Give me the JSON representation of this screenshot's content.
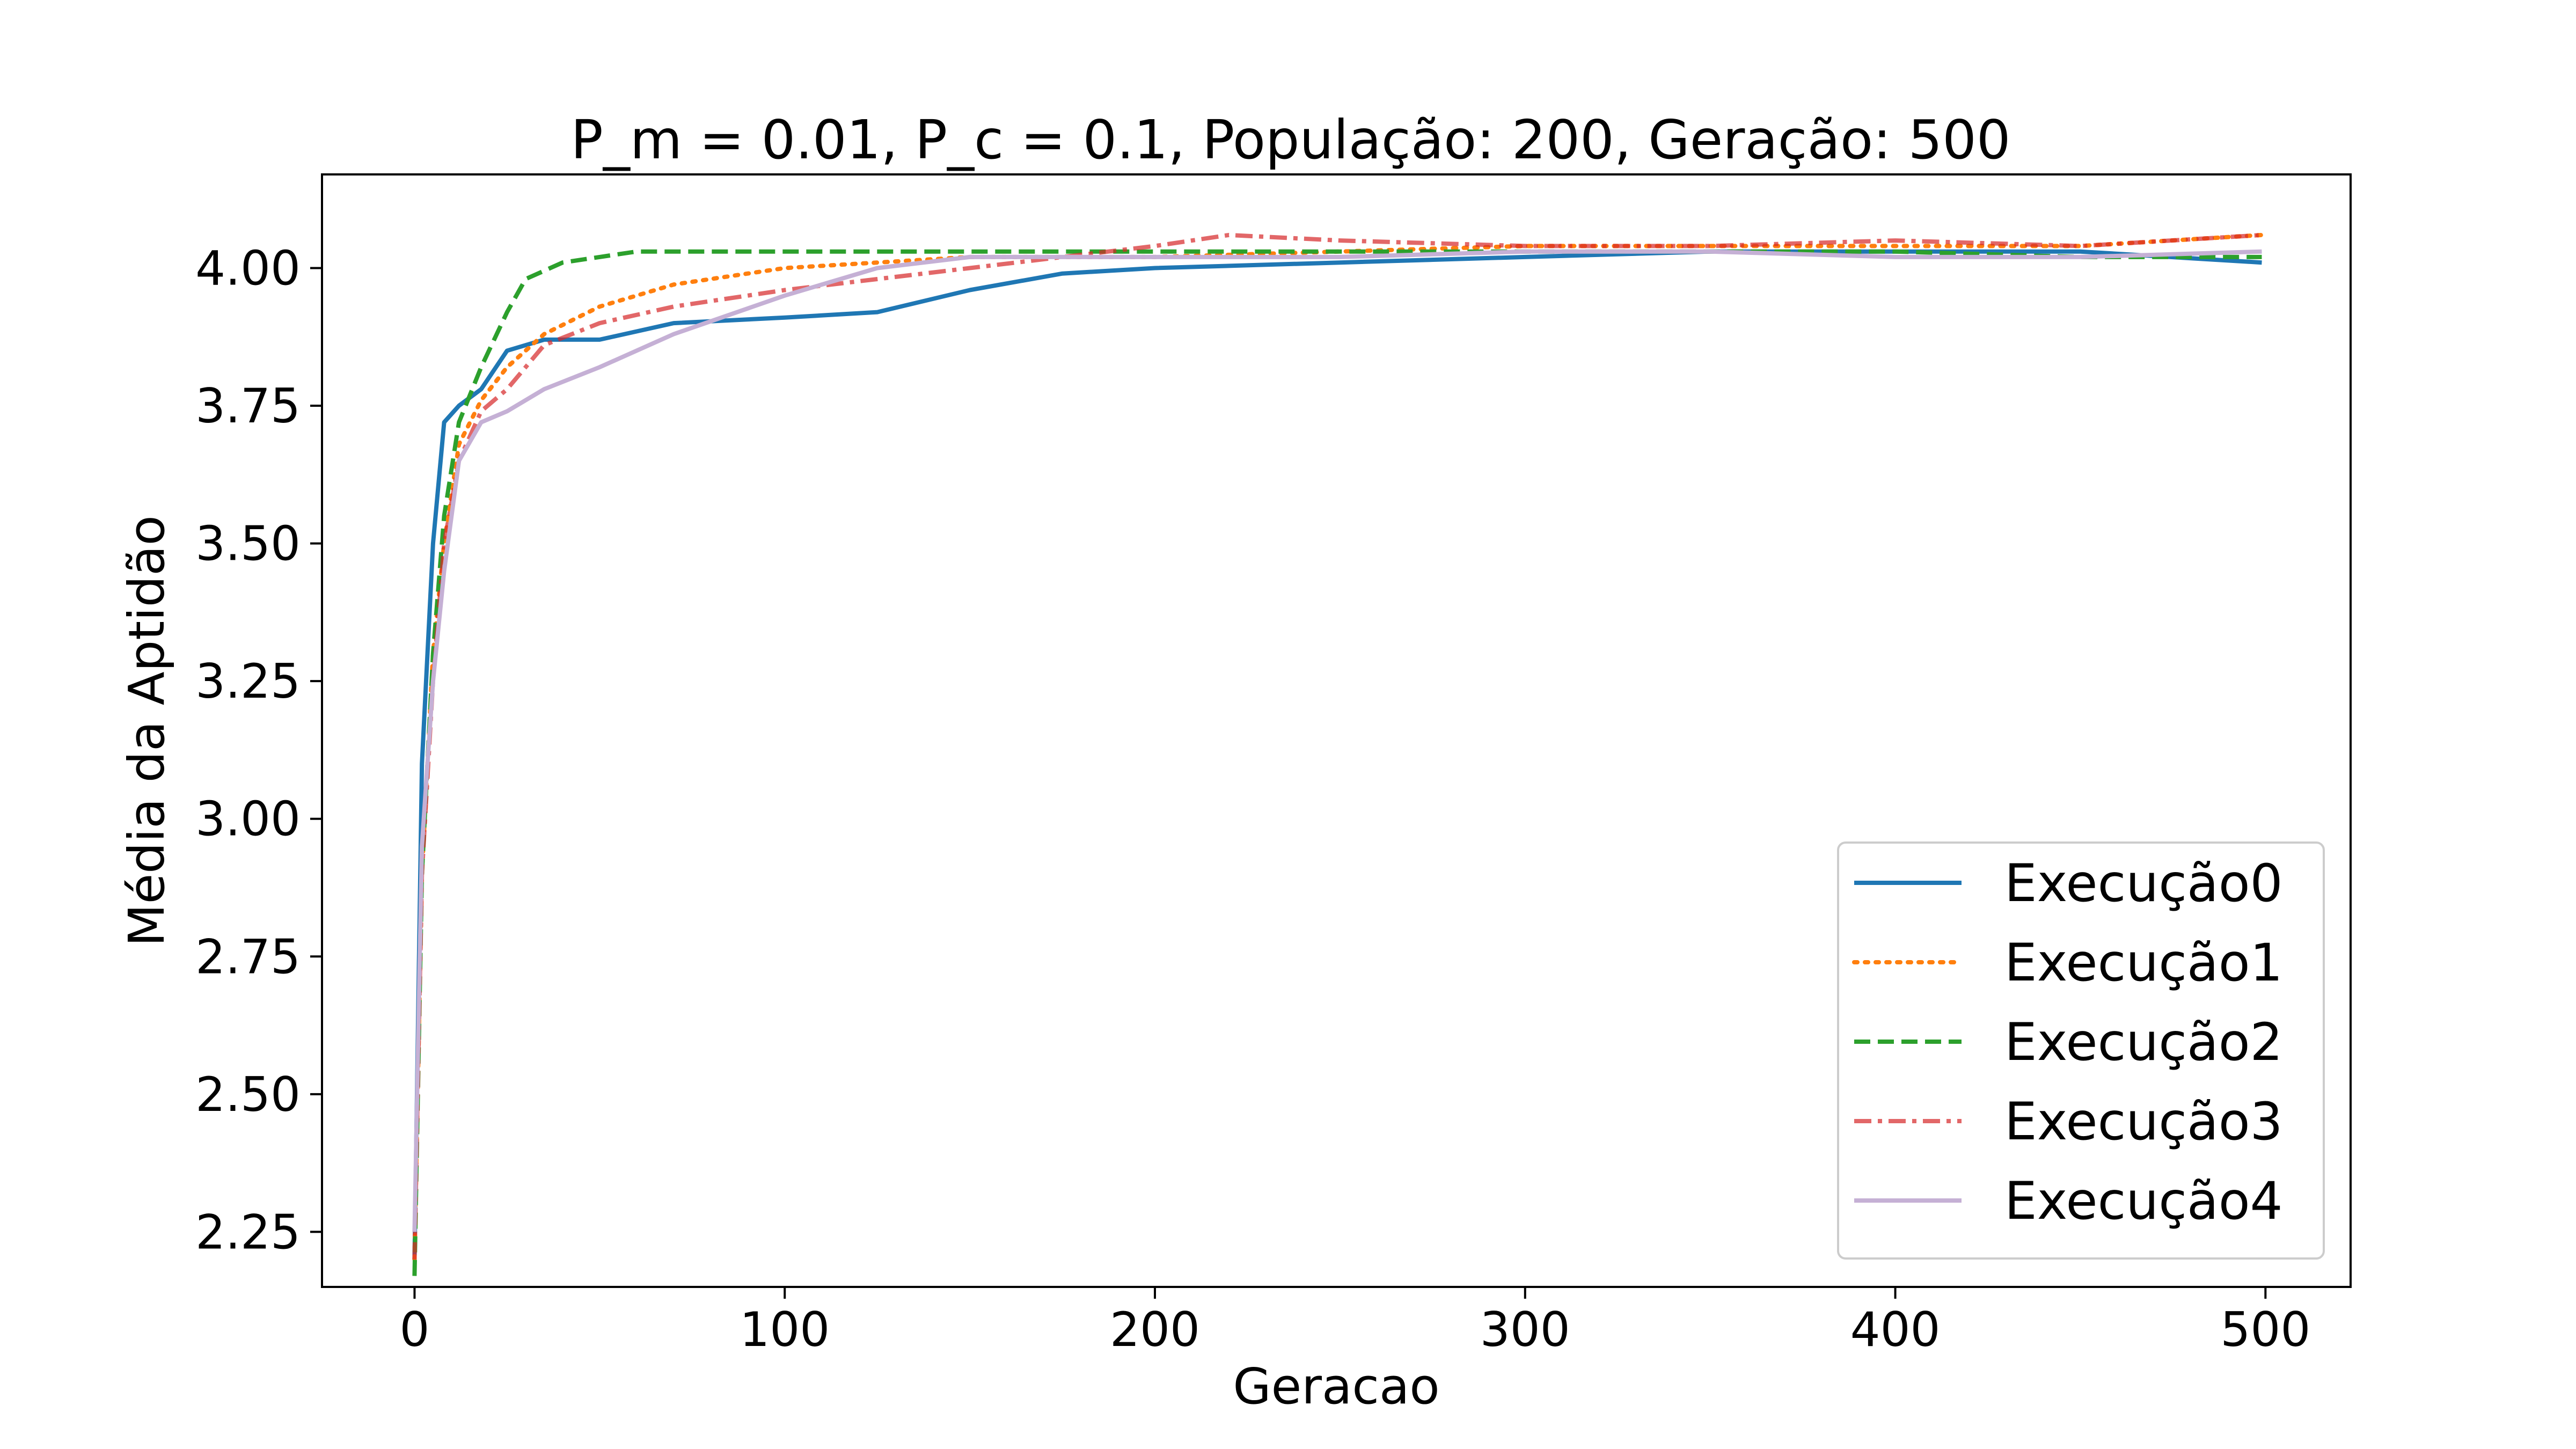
{
  "chart_data": {
    "type": "line",
    "title": "P_m = 0.01, P_c = 0.1, População: 200, Geração: 500",
    "xlabel": "Geracao",
    "ylabel": "Média da Aptidão",
    "xlim": [
      -25,
      523
    ],
    "ylim": [
      2.15,
      4.17
    ],
    "xticks": [
      0,
      100,
      200,
      300,
      400,
      500
    ],
    "xtick_labels": [
      "0",
      "100",
      "200",
      "300",
      "400",
      "500"
    ],
    "yticks": [
      2.25,
      2.5,
      2.75,
      3.0,
      3.25,
      3.5,
      3.75,
      4.0
    ],
    "ytick_labels": [
      "2.25",
      "2.50",
      "2.75",
      "3.00",
      "3.25",
      "3.50",
      "3.75",
      "4.00"
    ],
    "grid": false,
    "legend_position": "lower right",
    "series": [
      {
        "name": "Execução0",
        "color": "#1f77b4",
        "dash": "solid",
        "x": [
          0,
          2,
          5,
          8,
          12,
          18,
          25,
          35,
          50,
          70,
          100,
          125,
          150,
          175,
          200,
          250,
          300,
          350,
          400,
          450,
          499
        ],
        "y": [
          2.2,
          3.1,
          3.5,
          3.72,
          3.75,
          3.78,
          3.85,
          3.87,
          3.87,
          3.9,
          3.91,
          3.92,
          3.96,
          3.99,
          4.0,
          4.01,
          4.02,
          4.03,
          4.03,
          4.03,
          4.01
        ]
      },
      {
        "name": "Execução1",
        "color": "#ff7f0e",
        "dash": "dotted",
        "x": [
          0,
          2,
          5,
          8,
          12,
          18,
          25,
          35,
          50,
          70,
          100,
          125,
          150,
          175,
          200,
          250,
          300,
          350,
          400,
          450,
          499
        ],
        "y": [
          2.2,
          2.9,
          3.3,
          3.5,
          3.68,
          3.76,
          3.82,
          3.88,
          3.93,
          3.97,
          4.0,
          4.01,
          4.02,
          4.02,
          4.02,
          4.03,
          4.04,
          4.04,
          4.04,
          4.04,
          4.06
        ]
      },
      {
        "name": "Execução2",
        "color": "#2ca02c",
        "dash": "dashed",
        "x": [
          0,
          2,
          5,
          8,
          12,
          18,
          25,
          30,
          40,
          50,
          60,
          70,
          100,
          125,
          150,
          175,
          200,
          250,
          300,
          350,
          400,
          450,
          499
        ],
        "y": [
          2.17,
          2.9,
          3.3,
          3.55,
          3.72,
          3.82,
          3.92,
          3.98,
          4.01,
          4.02,
          4.03,
          4.03,
          4.03,
          4.03,
          4.03,
          4.03,
          4.03,
          4.03,
          4.03,
          4.03,
          4.03,
          4.02,
          4.02
        ]
      },
      {
        "name": "Execução3",
        "color": "#d62728",
        "dash": "dashdot",
        "x": [
          0,
          2,
          5,
          8,
          12,
          18,
          25,
          35,
          50,
          70,
          100,
          125,
          150,
          175,
          200,
          220,
          250,
          300,
          350,
          400,
          450,
          499
        ],
        "y": [
          2.2,
          2.9,
          3.25,
          3.5,
          3.65,
          3.74,
          3.78,
          3.86,
          3.9,
          3.93,
          3.96,
          3.98,
          4.0,
          4.02,
          4.04,
          4.06,
          4.05,
          4.04,
          4.04,
          4.05,
          4.04,
          4.06
        ]
      },
      {
        "name": "Execução4",
        "color": "#c5b0d5",
        "dash": "solid",
        "x": [
          0,
          2,
          5,
          8,
          12,
          18,
          25,
          35,
          50,
          70,
          100,
          125,
          150,
          175,
          200,
          250,
          300,
          350,
          400,
          450,
          499
        ],
        "y": [
          2.25,
          2.95,
          3.25,
          3.45,
          3.65,
          3.72,
          3.74,
          3.78,
          3.82,
          3.88,
          3.95,
          4.0,
          4.02,
          4.02,
          4.02,
          4.02,
          4.03,
          4.03,
          4.02,
          4.02,
          4.03
        ]
      }
    ]
  }
}
